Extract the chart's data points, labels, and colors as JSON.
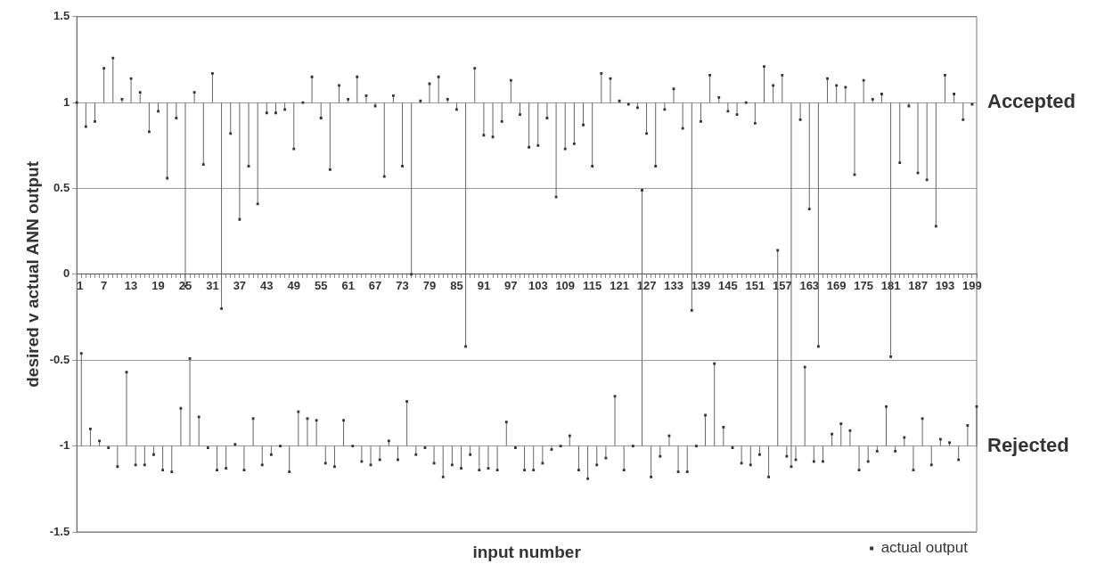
{
  "chart_data": {
    "type": "scatter",
    "xlabel": "input number",
    "ylabel": "desired v actual ANN output",
    "annotations": [
      "Accepted",
      "Rejected"
    ],
    "categories": [
      "1",
      null,
      null,
      null,
      null,
      null,
      "7",
      null,
      null,
      null,
      null,
      null,
      "13",
      null,
      null,
      null,
      null,
      null,
      "19",
      null,
      null,
      null,
      null,
      null,
      "25",
      null,
      null,
      null,
      null,
      null,
      "31",
      null,
      null,
      null,
      null,
      null,
      "37",
      null,
      null,
      null,
      null,
      null,
      "43",
      null,
      null,
      null,
      null,
      null,
      "49",
      null,
      null,
      null,
      null,
      null,
      "55",
      null,
      null,
      null,
      null,
      null,
      "61",
      null,
      null,
      null,
      null,
      null,
      "67",
      null,
      null,
      null,
      null,
      null,
      "73",
      null,
      null,
      null,
      null,
      null,
      "79",
      null,
      null,
      null,
      null,
      null,
      "85",
      null,
      null,
      null,
      null,
      null,
      "91",
      null,
      null,
      null,
      null,
      null,
      "97",
      null,
      null,
      null,
      null,
      null,
      "103",
      null,
      null,
      null,
      null,
      null,
      "109",
      null,
      null,
      null,
      null,
      null,
      "115",
      null,
      null,
      null,
      null,
      null,
      "121",
      null,
      null,
      null,
      null,
      null,
      "127",
      null,
      null,
      null,
      null,
      null,
      "133",
      null,
      null,
      null,
      null,
      null,
      "139",
      null,
      null,
      null,
      null,
      null,
      "145",
      null,
      null,
      null,
      null,
      null,
      "151",
      null,
      null,
      null,
      null,
      null,
      "157",
      null,
      null,
      null,
      null,
      null,
      "163",
      null,
      null,
      null,
      null,
      null,
      "169",
      null,
      null,
      null,
      null,
      null,
      "175",
      null,
      null,
      null,
      null,
      null,
      "181",
      null,
      null,
      null,
      null,
      null,
      "187",
      null,
      null,
      null,
      null,
      null,
      "193",
      null,
      null,
      null,
      null,
      null,
      "199",
      null
    ],
    "series": [
      {
        "name": "actual output",
        "color": "#333333",
        "values": [
          1.0,
          -0.46,
          0.86,
          -0.9,
          0.89,
          -0.97,
          1.2,
          -1.01,
          1.26,
          -1.12,
          1.02,
          -0.57,
          1.14,
          -1.11,
          1.06,
          -1.11,
          0.83,
          -1.05,
          0.95,
          -1.14,
          0.56,
          -1.15,
          0.91,
          -0.78,
          -0.07,
          -0.49,
          1.06,
          -0.83,
          0.64,
          -1.01,
          1.17,
          -1.14,
          -0.2,
          -1.13,
          0.82,
          -0.99,
          0.32,
          -1.14,
          0.63,
          -0.84,
          0.41,
          -1.11,
          0.94,
          -1.05,
          0.94,
          -1.0,
          0.96,
          -1.15,
          0.73,
          -0.8,
          1.0,
          -0.84,
          1.15,
          -0.85,
          0.91,
          -1.1,
          0.61,
          -1.12,
          1.1,
          -0.85,
          1.02,
          -1.0,
          1.15,
          -1.09,
          1.04,
          -1.11,
          0.98,
          -1.08,
          0.57,
          -0.97,
          1.04,
          -1.08,
          0.63,
          -0.74,
          0.0,
          -1.05,
          1.01,
          -1.01,
          1.11,
          -1.1,
          1.15,
          -1.18,
          1.02,
          -1.11,
          0.96,
          -1.13,
          -0.42,
          -1.05,
          1.2,
          -1.14,
          0.81,
          -1.13,
          0.8,
          -1.14,
          0.89,
          -0.86,
          1.13,
          -1.01,
          0.93,
          -1.14,
          0.74,
          -1.14,
          0.75,
          -1.1,
          0.91,
          -1.02,
          0.45,
          -1.0,
          0.73,
          -0.94,
          0.76,
          -1.14,
          0.87,
          -1.19,
          0.63,
          -1.11,
          1.17,
          -1.07,
          1.14,
          -0.71,
          1.01,
          -1.14,
          0.99,
          -1.0,
          0.97,
          0.49,
          0.82,
          -1.18,
          0.63,
          -1.06,
          0.96,
          -0.94,
          1.08,
          -1.15,
          0.85,
          -1.15,
          -0.21,
          -1.0,
          0.89,
          -0.82,
          1.16,
          -0.52,
          1.03,
          -0.89,
          0.95,
          -1.01,
          0.93,
          -1.1,
          1.0,
          -1.11,
          0.88,
          -1.05,
          1.21,
          -1.18,
          1.1,
          0.14,
          1.16,
          -1.06,
          -1.12,
          -1.08,
          0.9,
          -0.54,
          0.38,
          -1.09,
          -0.42,
          -1.09,
          1.14,
          -0.93,
          1.1,
          -0.87,
          1.09,
          -0.91,
          0.58,
          -1.14,
          1.13,
          -1.09,
          1.02,
          -1.03,
          1.05,
          -0.77,
          -0.48,
          -1.03,
          0.65,
          -0.95,
          0.98,
          -1.14,
          0.59,
          -0.84,
          0.55,
          -1.11,
          0.28,
          -0.96,
          1.16,
          -0.98,
          1.05,
          -1.08,
          0.9,
          -0.88,
          0.99,
          -0.77
        ],
        "errors": [
          [
            1,
            1
          ],
          [
            -1,
            -0.46
          ],
          [
            0.86,
            1
          ],
          [
            -1,
            -0.9
          ],
          [
            0.89,
            1
          ],
          [
            -1,
            -0.97
          ],
          [
            1,
            1.2
          ],
          [
            -1.01,
            -1
          ],
          [
            1,
            1.26
          ],
          [
            -1.12,
            -1
          ],
          [
            1,
            1.02
          ],
          [
            -1,
            -0.57
          ],
          [
            1,
            1.14
          ],
          [
            -1.11,
            -1
          ],
          [
            1,
            1.06
          ],
          [
            -1.11,
            -1
          ],
          [
            0.83,
            1
          ],
          [
            -1.05,
            -1
          ],
          [
            0.95,
            1
          ],
          [
            -1.14,
            -1
          ],
          [
            0.56,
            1
          ],
          [
            -1.15,
            -1
          ],
          [
            0.91,
            1
          ],
          [
            -1,
            -0.78
          ],
          [
            -0.07,
            1
          ],
          [
            -1,
            -0.49
          ],
          [
            1,
            1.06
          ],
          [
            -1,
            -0.83
          ],
          [
            0.64,
            1
          ],
          [
            -1.01,
            -1
          ],
          [
            1,
            1.17
          ],
          [
            -1.14,
            -1
          ],
          [
            -0.2,
            1
          ],
          [
            -1.13,
            -1
          ],
          [
            0.82,
            1
          ],
          [
            -1,
            -0.99
          ],
          [
            0.32,
            1
          ],
          [
            -1.14,
            -1
          ],
          [
            0.63,
            1
          ],
          [
            -1,
            -0.84
          ],
          [
            0.41,
            1
          ],
          [
            -1.11,
            -1
          ],
          [
            0.94,
            1
          ],
          [
            -1.05,
            -1
          ],
          [
            0.94,
            1
          ],
          [
            -1,
            -1
          ],
          [
            0.96,
            1
          ],
          [
            -1.15,
            -1
          ],
          [
            0.73,
            1
          ],
          [
            -1,
            -0.8
          ],
          [
            1,
            1
          ],
          [
            -1,
            -0.84
          ],
          [
            1,
            1.15
          ],
          [
            -1,
            -0.85
          ],
          [
            0.91,
            1
          ],
          [
            -1.1,
            -1
          ],
          [
            0.61,
            1
          ],
          [
            -1.12,
            -1
          ],
          [
            1,
            1.1
          ],
          [
            -1,
            -0.85
          ],
          [
            1,
            1.02
          ],
          [
            -1,
            -1
          ],
          [
            1,
            1.15
          ],
          [
            -1.09,
            -1
          ],
          [
            1,
            1.04
          ],
          [
            -1.11,
            -1
          ],
          [
            0.98,
            1
          ],
          [
            -1.08,
            -1
          ],
          [
            0.57,
            1
          ],
          [
            -1,
            -0.97
          ],
          [
            1,
            1.04
          ],
          [
            -1.08,
            -1
          ],
          [
            0.63,
            1
          ],
          [
            -1,
            -0.74
          ],
          [
            0,
            1
          ],
          [
            -1.05,
            -1
          ],
          [
            1,
            1.01
          ],
          [
            -1.01,
            -1
          ],
          [
            1,
            1.11
          ],
          [
            -1.1,
            -1
          ],
          [
            1,
            1.15
          ],
          [
            -1.18,
            -1
          ],
          [
            1,
            1.02
          ],
          [
            -1.11,
            -1
          ],
          [
            0.96,
            1
          ],
          [
            -1.13,
            -1
          ],
          [
            -0.42,
            1
          ],
          [
            -1.05,
            -1
          ],
          [
            1,
            1.2
          ],
          [
            -1.14,
            -1
          ],
          [
            0.81,
            1
          ],
          [
            -1.13,
            -1
          ],
          [
            0.8,
            1
          ],
          [
            -1.14,
            -1
          ],
          [
            0.89,
            1
          ],
          [
            -1,
            -0.86
          ],
          [
            1,
            1.13
          ],
          [
            -1.01,
            -1
          ],
          [
            0.93,
            1
          ],
          [
            -1.14,
            -1
          ],
          [
            0.74,
            1
          ],
          [
            -1.14,
            -1
          ],
          [
            0.75,
            1
          ],
          [
            -1.1,
            -1
          ],
          [
            0.91,
            1
          ],
          [
            -1.02,
            -1
          ],
          [
            0.45,
            1
          ],
          [
            -1,
            -1
          ],
          [
            0.73,
            1
          ],
          [
            -1,
            -0.94
          ],
          [
            0.76,
            1
          ],
          [
            -1.14,
            -1
          ],
          [
            0.87,
            1
          ],
          [
            -1.19,
            -1
          ],
          [
            0.63,
            1
          ],
          [
            -1.11,
            -1
          ],
          [
            1,
            1.17
          ],
          [
            -1.07,
            -1
          ],
          [
            1,
            1.14
          ],
          [
            -1,
            -0.71
          ],
          [
            1,
            1.01
          ],
          [
            -1.14,
            -1
          ],
          [
            0.99,
            1
          ],
          [
            -1,
            -1
          ],
          [
            0.97,
            1
          ],
          [
            -1,
            0.49
          ],
          [
            0.82,
            1
          ],
          [
            -1.18,
            -1
          ],
          [
            0.63,
            1
          ],
          [
            -1.06,
            -1
          ],
          [
            0.96,
            1
          ],
          [
            -1,
            -0.94
          ],
          [
            1,
            1.08
          ],
          [
            -1.15,
            -1
          ],
          [
            0.85,
            1
          ],
          [
            -1.15,
            -1
          ],
          [
            -0.21,
            1
          ],
          [
            -1,
            -1
          ],
          [
            0.89,
            1
          ],
          [
            -1,
            -0.82
          ],
          [
            1,
            1.16
          ],
          [
            -1,
            -0.52
          ],
          [
            1,
            1.03
          ],
          [
            -1,
            -0.89
          ],
          [
            0.95,
            1
          ],
          [
            -1.01,
            -1
          ],
          [
            0.93,
            1
          ],
          [
            -1.1,
            -1
          ],
          [
            1,
            1
          ],
          [
            -1.11,
            -1
          ],
          [
            0.88,
            1
          ],
          [
            -1.05,
            -1
          ],
          [
            1,
            1.21
          ],
          [
            -1.18,
            -1
          ],
          [
            1,
            1.1
          ],
          [
            -1,
            0.14
          ],
          [
            1,
            1.16
          ],
          [
            -1.06,
            -1
          ],
          [
            -1.12,
            1
          ],
          [
            -1.08,
            -1
          ],
          [
            0.9,
            1
          ],
          [
            -1,
            -0.54
          ],
          [
            0.38,
            1
          ],
          [
            -1.09,
            -1
          ],
          [
            -0.42,
            1
          ],
          [
            -1.09,
            -1
          ],
          [
            1,
            1.14
          ],
          [
            -1,
            -0.93
          ],
          [
            1,
            1.1
          ],
          [
            -1,
            -0.87
          ],
          [
            1,
            1.09
          ],
          [
            -1,
            -0.91
          ],
          [
            0.58,
            1
          ],
          [
            -1.14,
            -1
          ],
          [
            1,
            1.13
          ],
          [
            -1.09,
            -1
          ],
          [
            1,
            1.02
          ],
          [
            -1.03,
            -1
          ],
          [
            1,
            1.05
          ],
          [
            -1,
            -0.77
          ],
          [
            -0.48,
            1
          ],
          [
            -1.03,
            -1
          ],
          [
            0.65,
            1
          ],
          [
            -1,
            -0.95
          ],
          [
            0.98,
            1
          ],
          [
            -1.14,
            -1
          ],
          [
            0.59,
            1
          ],
          [
            -1,
            -0.84
          ],
          [
            0.55,
            1
          ],
          [
            -1.11,
            -1
          ],
          [
            0.28,
            1
          ],
          [
            -1,
            -0.96
          ],
          [
            1,
            1.16
          ],
          [
            -1,
            -0.98
          ],
          [
            1,
            1.05
          ],
          [
            -1.08,
            -1
          ],
          [
            0.9,
            1
          ],
          [
            -1,
            -0.88
          ],
          [
            0.99,
            1
          ],
          [
            -1,
            -0.77
          ]
        ]
      }
    ],
    "ylim": [
      -1.5,
      1.5
    ],
    "yticks": [
      -1.5,
      -1,
      -0.5,
      0,
      0.5,
      1,
      1.5
    ],
    "grid": "y",
    "legend": "bottom right",
    "marker": "square"
  }
}
